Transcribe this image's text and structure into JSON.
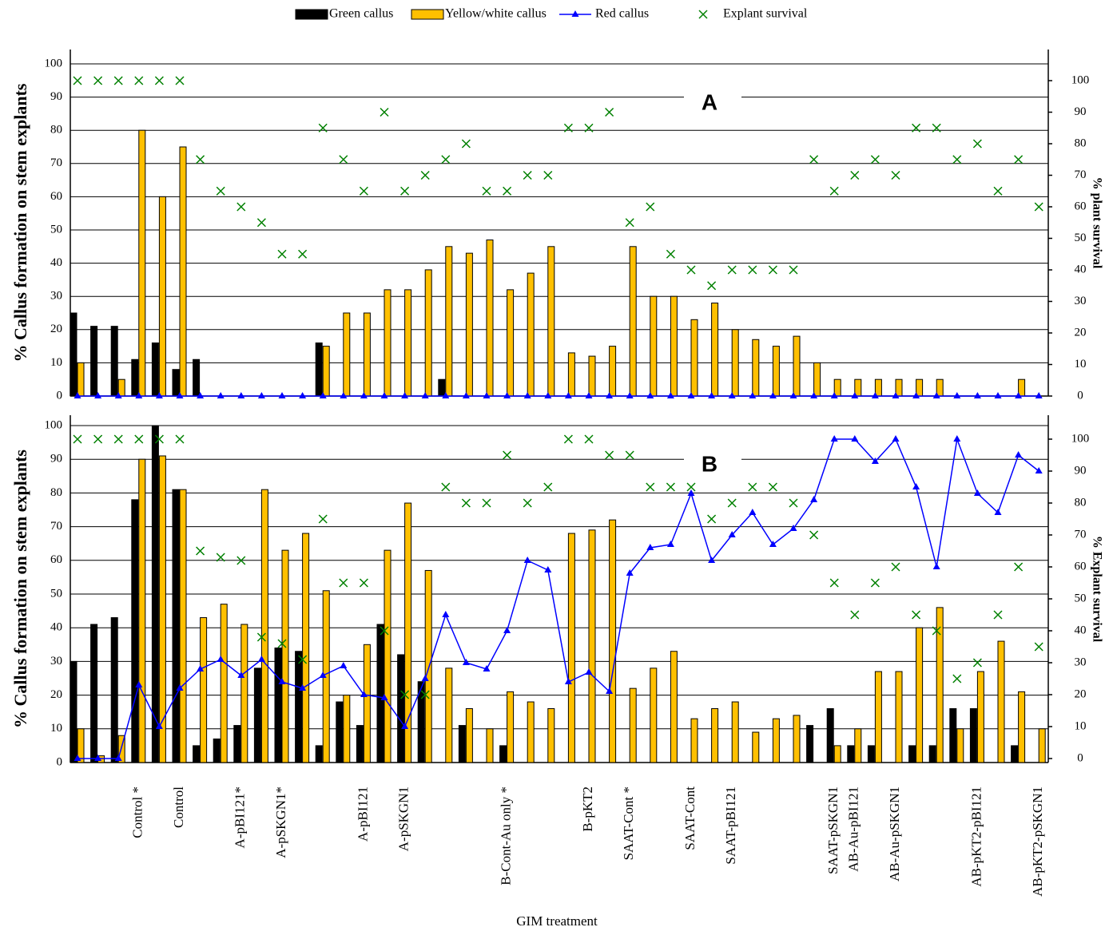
{
  "chart_data": {
    "type": "bar",
    "x_label": "GIM treatment",
    "y_label": "% Callus formation on stem explants",
    "categories": [
      null,
      null,
      null,
      "Control *",
      null,
      "Control",
      null,
      null,
      "A-pBI121*",
      null,
      "A-pSKGN1*",
      null,
      null,
      null,
      "A-pBI121",
      null,
      "A-pSKGN1",
      null,
      null,
      null,
      null,
      "B-Cont-Au only *",
      null,
      null,
      null,
      "B-pKT2",
      null,
      "SAAT-Cont *",
      null,
      null,
      "SAAT-Cont",
      null,
      "SAAT-pBI121",
      null,
      null,
      null,
      null,
      "SAAT-pSKGN1",
      "AB-Au-pBI121",
      null,
      "AB-Au-pSKGN1",
      null,
      null,
      null,
      "AB-pKT2-pBI121",
      null,
      null,
      "AB-pKT2-pSKGN1"
    ],
    "series": [
      {
        "name": "Green callus",
        "color": "#000000",
        "style": "bar"
      },
      {
        "name": "Yellow/white callus",
        "color": "#ffc000",
        "style": "bar"
      },
      {
        "name": "Red callus",
        "color": "#0000ff",
        "style": "line",
        "axis": "y2"
      },
      {
        "name": "Explant survival",
        "color": "#008000",
        "style": "cross",
        "axis": "y2"
      }
    ],
    "ylim": [
      0,
      100
    ],
    "yticks": [
      0,
      10,
      20,
      30,
      40,
      50,
      60,
      70,
      80,
      90,
      100
    ],
    "y2lim": [
      0,
      100
    ],
    "y2ticks": [
      0,
      10,
      20,
      30,
      40,
      50,
      60,
      70,
      80,
      90,
      100
    ],
    "grid": true,
    "panels": [
      {
        "label": "A",
        "y2_label": "% plant survival",
        "values": [
          [
            25,
            21,
            21,
            11,
            16,
            8,
            11,
            0,
            0,
            0,
            0,
            0,
            16,
            0,
            0,
            0,
            0,
            0,
            5,
            0,
            0,
            0,
            0,
            0,
            0,
            0,
            0,
            0,
            0,
            0,
            0,
            0,
            0,
            0,
            0,
            0,
            0,
            0,
            0,
            0,
            0,
            0,
            0,
            0,
            0,
            0,
            0,
            0
          ],
          [
            10,
            0,
            5,
            80,
            60,
            75,
            0,
            0,
            0,
            0,
            0,
            0,
            15,
            25,
            25,
            32,
            32,
            38,
            45,
            43,
            47,
            32,
            37,
            45,
            13,
            12,
            15,
            45,
            30,
            30,
            23,
            28,
            20,
            17,
            15,
            18,
            10,
            5,
            5,
            5,
            5,
            5,
            5,
            0,
            0,
            0,
            5,
            0
          ],
          [
            0,
            0,
            0,
            0,
            0,
            0,
            0,
            0,
            0,
            0,
            0,
            0,
            0,
            0,
            0,
            0,
            0,
            0,
            0,
            0,
            0,
            0,
            0,
            0,
            0,
            0,
            0,
            0,
            0,
            0,
            0,
            0,
            0,
            0,
            0,
            0,
            0,
            0,
            0,
            0,
            0,
            0,
            0,
            0,
            0,
            0,
            0,
            0
          ],
          [
            100,
            100,
            100,
            100,
            100,
            100,
            75,
            65,
            60,
            55,
            45,
            45,
            85,
            75,
            65,
            90,
            65,
            70,
            75,
            80,
            65,
            65,
            70,
            70,
            85,
            85,
            90,
            55,
            60,
            45,
            40,
            35,
            40,
            40,
            40,
            40,
            75,
            65,
            70,
            75,
            70,
            85,
            85,
            75,
            80,
            65,
            75,
            60
          ]
        ]
      },
      {
        "label": "B",
        "y2_label": "% Explant survival",
        "values": [
          [
            30,
            41,
            43,
            78,
            100,
            81,
            5,
            7,
            11,
            28,
            34,
            33,
            5,
            18,
            11,
            41,
            32,
            24,
            0,
            11,
            0,
            5,
            0,
            0,
            0,
            0,
            0,
            0,
            0,
            0,
            0,
            0,
            0,
            0,
            0,
            0,
            11,
            16,
            5,
            5,
            0,
            5,
            5,
            16,
            16,
            0,
            5,
            0
          ],
          [
            10,
            2,
            8,
            90,
            91,
            81,
            43,
            47,
            41,
            81,
            63,
            68,
            51,
            20,
            35,
            63,
            77,
            57,
            28,
            16,
            10,
            21,
            18,
            16,
            68,
            69,
            72,
            22,
            28,
            33,
            13,
            16,
            18,
            9,
            13,
            14,
            0,
            5,
            10,
            27,
            27,
            40,
            46,
            10,
            27,
            36,
            21,
            10
          ],
          [
            0,
            0,
            0,
            23,
            10,
            22,
            28,
            31,
            26,
            31,
            24,
            22,
            26,
            29,
            20,
            19,
            10,
            25,
            45,
            30,
            28,
            40,
            62,
            59,
            24,
            27,
            21,
            58,
            66,
            67,
            83,
            62,
            70,
            77,
            67,
            72,
            81,
            100,
            100,
            93,
            100,
            85,
            60,
            100,
            83,
            77,
            95,
            90
          ],
          [
            100,
            100,
            100,
            100,
            100,
            100,
            65,
            63,
            62,
            38,
            36,
            31,
            75,
            55,
            55,
            40,
            20,
            20,
            85,
            80,
            80,
            95,
            80,
            85,
            100,
            100,
            95,
            95,
            85,
            85,
            85,
            75,
            80,
            85,
            85,
            80,
            70,
            55,
            45,
            55,
            60,
            45,
            40,
            25,
            30,
            45,
            60,
            35
          ]
        ]
      }
    ]
  }
}
